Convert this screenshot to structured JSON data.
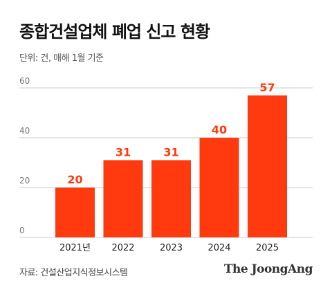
{
  "header": {
    "title": "종합건설업체 폐업 신고 현황",
    "subtitle": "단위: 건, 매해 1월 기준"
  },
  "footer": {
    "source": "자료: 건설산업지식정보시스템",
    "brand": "The JoongAng"
  },
  "colors": {
    "bar": "#ff3a0f",
    "label": "#ff3a0f",
    "grid": "#c8c8c8",
    "axis_text": "#777777"
  },
  "chart_data": {
    "type": "bar",
    "title": "종합건설업체 폐업 신고 현황",
    "subtitle": "단위: 건, 매해 1월 기준",
    "categories": [
      "2021년",
      "2022",
      "2023",
      "2024",
      "2025"
    ],
    "values": [
      20,
      31,
      31,
      40,
      57
    ],
    "value_labels": [
      "20",
      "31",
      "31",
      "40",
      "57"
    ],
    "yticks": [
      0,
      20,
      40,
      60
    ],
    "ytick_labels": [
      "0",
      "20",
      "40",
      "60"
    ],
    "ylim": [
      0,
      60
    ],
    "grid": true,
    "legend": false
  }
}
